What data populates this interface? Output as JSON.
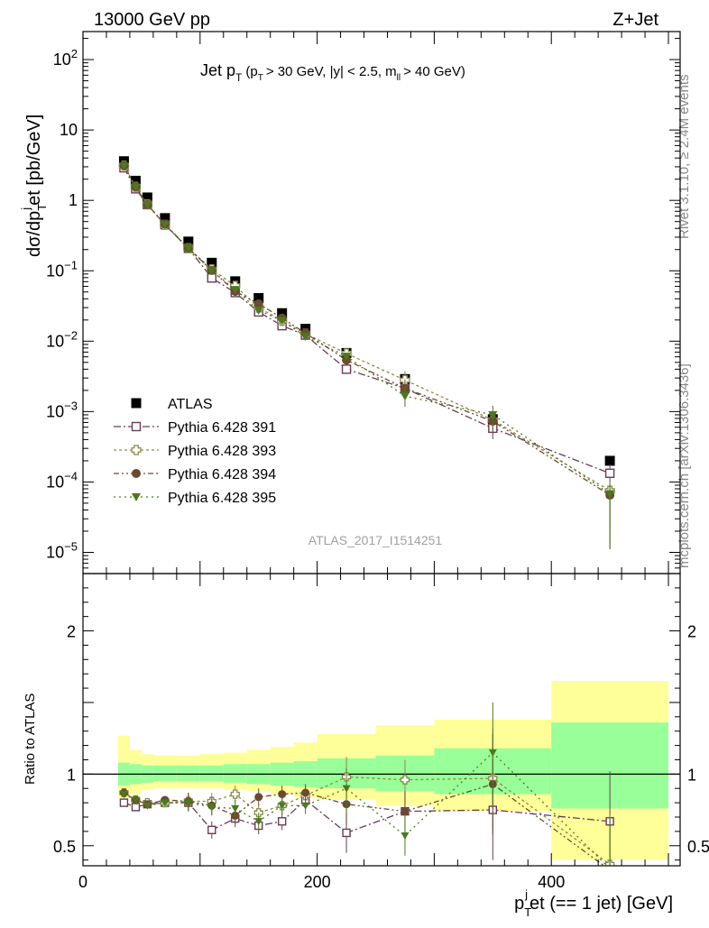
{
  "header": {
    "left": "13000 GeV pp",
    "right": "Z+Jet"
  },
  "side_labels": {
    "top": "Rivet 3.1.10, ≥ 2.4M events",
    "bottom": "mcplots.cern.ch [arXiv:1306.3436]"
  },
  "plot_title": {
    "main": "Jet p",
    "sub": "T",
    "cut1": "(p",
    "cut2": "> 30 GeV, |y| < 2.5, m",
    "cut_sub": "ll",
    "cut3": "> 40 GeV)"
  },
  "watermark": "ATLAS_2017_I1514251",
  "labels": {
    "ylabel_main": "dσ/dp",
    "ylabel_sub": "T",
    "ylabel_sup": "j",
    "ylabel_rest": "et [pb/GeV]",
    "ratio_ylabel": "Ratio to ATLAS",
    "xlabel_p": "p",
    "xlabel_sub": "T",
    "xlabel_sup": "j",
    "xlabel_rest": "et (== 1 jet) [GeV]"
  },
  "chart_data": [
    {
      "type": "scatter",
      "title": "Jet pT (pT > 30 GeV, |y| < 2.5, mll > 40 GeV)",
      "xlabel": "pT jet (== 1 jet) [GeV]",
      "ylabel": "dσ/dpT jet [pb/GeV]",
      "xlim": [
        0,
        510
      ],
      "ylim": [
        5e-06,
        250
      ],
      "yscale": "log",
      "x": [
        35,
        45,
        55,
        70,
        90,
        110,
        130,
        150,
        170,
        190,
        225,
        275,
        350,
        450
      ],
      "legend_position": "bottom-left",
      "series": [
        {
          "name": "ATLAS",
          "color": "#000000",
          "marker": "filled-square",
          "values": [
            3.6,
            1.9,
            1.1,
            0.56,
            0.26,
            0.13,
            0.071,
            0.041,
            0.025,
            0.015,
            0.0068,
            0.0029,
            0.00078,
            0.0002
          ]
        },
        {
          "name": "Pythia 6.428 391",
          "color": "#6b3b56",
          "marker": "open-square",
          "values": [
            2.9,
            1.46,
            0.87,
            0.45,
            0.208,
            0.079,
            0.049,
            0.026,
            0.0166,
            0.0122,
            0.004,
            0.00214,
            0.00058,
            0.000133
          ]
        },
        {
          "name": "Pythia 6.428 393",
          "color": "#8a8a4a",
          "marker": "open-cross",
          "values": [
            3.13,
            1.56,
            0.88,
            0.45,
            0.21,
            0.105,
            0.061,
            0.03,
            0.0195,
            0.0128,
            0.0067,
            0.0028,
            0.00076,
            7.5e-05
          ]
        },
        {
          "name": "Pythia 6.428 394",
          "color": "#6b4a2e",
          "marker": "filled-circle",
          "values": [
            3.13,
            1.56,
            0.87,
            0.46,
            0.21,
            0.101,
            0.051,
            0.034,
            0.0213,
            0.013,
            0.0054,
            0.00214,
            0.00073,
            6.5e-05
          ]
        },
        {
          "name": "Pythia 6.428 395",
          "color": "#4a7a1e",
          "marker": "filled-triangle-down",
          "values": [
            3.07,
            1.55,
            0.86,
            0.45,
            0.208,
            0.1,
            0.054,
            0.0275,
            0.0195,
            0.0117,
            0.0061,
            0.00166,
            0.0009,
            6.8e-05
          ]
        }
      ]
    },
    {
      "type": "scatter",
      "ylabel": "Ratio to ATLAS",
      "xlim": [
        0,
        510
      ],
      "ylim": [
        0.36,
        2.4
      ],
      "x": [
        35,
        45,
        55,
        70,
        90,
        110,
        130,
        150,
        170,
        190,
        225,
        275,
        350,
        450
      ],
      "bands": {
        "edges": [
          30,
          40,
          50,
          60,
          80,
          100,
          120,
          140,
          160,
          180,
          200,
          250,
          300,
          400,
          500
        ],
        "green_lo": [
          0.92,
          0.93,
          0.94,
          0.95,
          0.95,
          0.95,
          0.94,
          0.93,
          0.92,
          0.91,
          0.9,
          0.88,
          0.86,
          0.76
        ],
        "green_hi": [
          1.08,
          1.07,
          1.06,
          1.06,
          1.06,
          1.06,
          1.07,
          1.07,
          1.08,
          1.09,
          1.11,
          1.13,
          1.18,
          1.36
        ],
        "yellow_lo": [
          0.83,
          0.86,
          0.89,
          0.9,
          0.9,
          0.9,
          0.89,
          0.88,
          0.86,
          0.84,
          0.82,
          0.78,
          0.74,
          0.4
        ],
        "yellow_hi": [
          1.27,
          1.17,
          1.14,
          1.13,
          1.13,
          1.14,
          1.15,
          1.17,
          1.19,
          1.22,
          1.28,
          1.34,
          1.38,
          1.65
        ]
      },
      "series": [
        {
          "name": "Pythia 6.428 391",
          "color": "#6b3b56",
          "values": [
            0.8,
            0.77,
            0.79,
            0.8,
            0.8,
            0.61,
            0.69,
            0.64,
            0.67,
            0.82,
            0.59,
            0.74,
            0.75,
            0.67
          ]
        },
        {
          "name": "Pythia 6.428 393",
          "color": "#8a8a4a",
          "values": [
            0.87,
            0.82,
            0.8,
            0.8,
            0.81,
            0.81,
            0.86,
            0.73,
            0.78,
            0.85,
            0.98,
            0.96,
            0.97,
            0.37
          ]
        },
        {
          "name": "Pythia 6.428 394",
          "color": "#6b4a2e",
          "values": [
            0.87,
            0.82,
            0.79,
            0.82,
            0.81,
            0.78,
            0.71,
            0.84,
            0.86,
            0.87,
            0.79,
            0.74,
            0.93,
            0.33
          ]
        },
        {
          "name": "Pythia 6.428 395",
          "color": "#4a7a1e",
          "values": [
            0.86,
            0.82,
            0.78,
            0.8,
            0.8,
            0.77,
            0.76,
            0.67,
            0.78,
            0.78,
            0.9,
            0.57,
            1.15,
            0.34
          ]
        }
      ]
    }
  ]
}
